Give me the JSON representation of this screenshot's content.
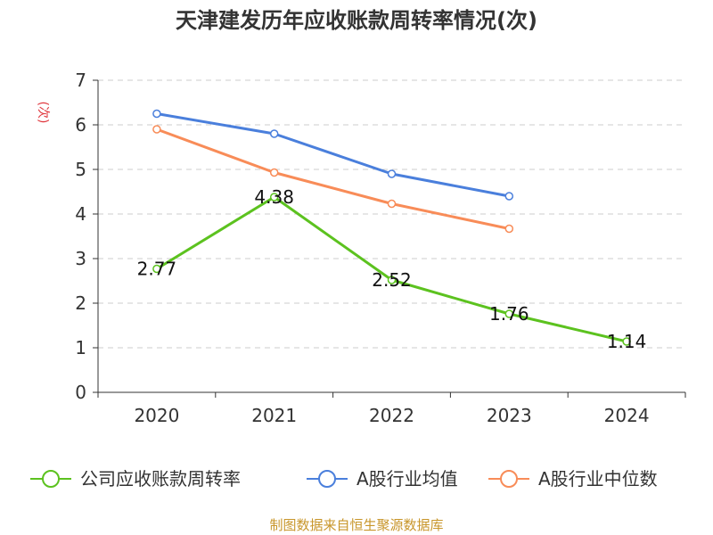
{
  "chart_data": {
    "type": "line",
    "title": "天津建发历年应收账款周转率情况(次)",
    "ylabel": "(次)",
    "xlabel": "",
    "categories": [
      "2020",
      "2021",
      "2022",
      "2023",
      "2024"
    ],
    "ylim": [
      0,
      7
    ],
    "yticks": [
      "0",
      "1",
      "2",
      "3",
      "4",
      "5",
      "6",
      "7"
    ],
    "grid": true,
    "legend_position": "bottom",
    "series": [
      {
        "name": "公司应收账款周转率",
        "color": "#5cc21f",
        "values": [
          2.77,
          4.38,
          2.52,
          1.76,
          1.14
        ],
        "labels": [
          "2.77",
          "4.38",
          "2.52",
          "1.76",
          "1.14"
        ]
      },
      {
        "name": "A股行业均值",
        "color": "#4a7fdc",
        "values": [
          6.25,
          5.8,
          4.9,
          4.4,
          null
        ]
      },
      {
        "name": "A股行业中位数",
        "color": "#f88c58",
        "values": [
          5.9,
          4.93,
          4.23,
          3.67,
          null
        ]
      }
    ]
  },
  "source": "制图数据来自恒生聚源数据库"
}
